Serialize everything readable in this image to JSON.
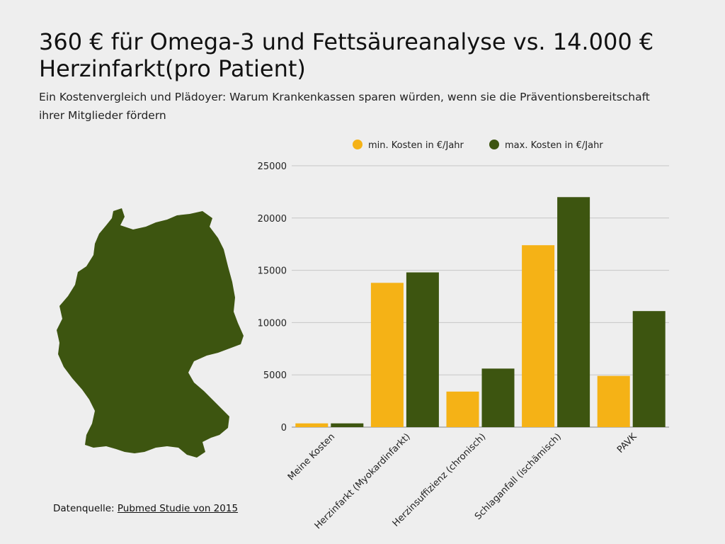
{
  "header": {
    "title": "360 € für Omega-3 und Fettsäureanalyse vs. 14.000 € Herzinfarkt(pro Patient)",
    "subtitle": "Ein Kostenvergleich und Plädoyer: Warum Krankenkassen sparen würden, wenn sie die Präventionsbereitschaft ihrer Mitglieder fördern"
  },
  "map": {
    "icon": "germany-map-icon",
    "color": "#3d5510"
  },
  "source": {
    "prefix": "Datenquelle: ",
    "link_text": "Pubmed Studie von 2015"
  },
  "chart_data": {
    "type": "bar",
    "categories": [
      "Meine Kosten",
      "Herzinfarkt (Myokardinfarkt)",
      "Herzinsuffizienz (chronisch)",
      "Schlaganfall (ischämisch)",
      "PAVK"
    ],
    "series": [
      {
        "name": "min. Kosten in €/Jahr",
        "color": "#f5b216",
        "values": [
          360,
          13800,
          3400,
          17400,
          4900
        ]
      },
      {
        "name": "max. Kosten in €/Jahr",
        "color": "#3d5510",
        "values": [
          360,
          14800,
          5600,
          22000,
          11100
        ]
      }
    ],
    "ylim": [
      0,
      25000
    ],
    "yticks": [
      0,
      5000,
      10000,
      15000,
      20000,
      25000
    ],
    "grid": true,
    "legend": "top"
  }
}
